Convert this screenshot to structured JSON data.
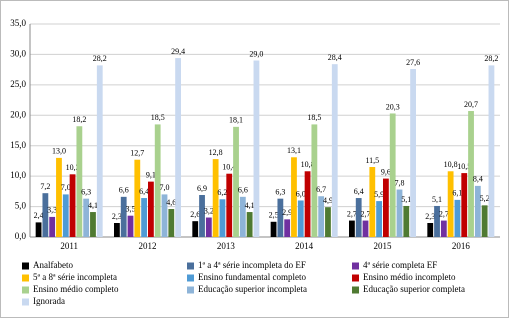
{
  "chart_data": {
    "type": "bar",
    "categories": [
      "2011",
      "2012",
      "2013",
      "2014",
      "2015",
      "2016"
    ],
    "ylim": [
      0,
      35
    ],
    "yticks": [
      {
        "value": 0,
        "label": "0,0"
      },
      {
        "value": 5,
        "label": "5,0"
      },
      {
        "value": 10,
        "label": "10,0"
      },
      {
        "value": 15,
        "label": "15,0"
      },
      {
        "value": 20,
        "label": "20,0"
      },
      {
        "value": 25,
        "label": "25,0"
      },
      {
        "value": 30,
        "label": "30,0"
      },
      {
        "value": 35,
        "label": "35,0"
      }
    ],
    "grid": true,
    "series": [
      {
        "name": "Analfabeto",
        "color": "#000000",
        "values": [
          2.4,
          2.3,
          2.6,
          2.5,
          2.7,
          2.3
        ],
        "value_labels": [
          "2,4",
          "2,3",
          "2,6",
          "2,5",
          "2,7",
          "2,3"
        ]
      },
      {
        "name": "1ª a 4ª série incompleta do EF",
        "color": "#4a6f9c",
        "values": [
          7.2,
          6.6,
          6.9,
          6.3,
          6.4,
          5.1
        ],
        "value_labels": [
          "7,2",
          "6,6",
          "6,9",
          "6,3",
          "6,4",
          "5,1"
        ]
      },
      {
        "name": "4ª série completa EF",
        "color": "#7030a0",
        "values": [
          3.3,
          3.5,
          3.2,
          2.9,
          2.7,
          2.7
        ],
        "value_labels": [
          "3,3",
          "3,5",
          "3,2",
          "2,9",
          "2,7",
          "2,7"
        ]
      },
      {
        "name": "5ª a 8ª série incompleta",
        "color": "#ffc000",
        "values": [
          13.0,
          12.7,
          12.8,
          13.1,
          11.5,
          10.8
        ],
        "value_labels": [
          "13,0",
          "12,7",
          "12,8",
          "13,1",
          "11,5",
          "10,8"
        ]
      },
      {
        "name": "Ensino fundamental completo",
        "color": "#4f9bd5",
        "values": [
          7.0,
          6.4,
          6.2,
          6.0,
          5.9,
          6.1
        ],
        "value_labels": [
          "7,0",
          "6,4",
          "6,2",
          "6,0",
          "5,9",
          "6,1"
        ]
      },
      {
        "name": "Ensino médio incompleto",
        "color": "#c00000",
        "values": [
          10.3,
          9.1,
          10.4,
          10.8,
          9.6,
          10.5
        ],
        "value_labels": [
          "10,3",
          "9,1",
          "10,4",
          "10,8",
          "9,6",
          "10,5"
        ]
      },
      {
        "name": "Ensino médio completo",
        "color": "#a9d18e",
        "values": [
          18.2,
          18.5,
          18.1,
          18.5,
          20.3,
          20.7
        ],
        "value_labels": [
          "18,2",
          "18,5",
          "18,1",
          "18,5",
          "20,3",
          "20,7"
        ]
      },
      {
        "name": "Educação superior incompleta",
        "color": "#8eb4d8",
        "values": [
          6.3,
          7.0,
          6.6,
          6.7,
          7.8,
          8.4
        ],
        "value_labels": [
          "6,3",
          "7,0",
          "6,6",
          "6,7",
          "7,8",
          "8,4"
        ]
      },
      {
        "name": "Educação superior completa",
        "color": "#4f7a32",
        "values": [
          4.1,
          4.6,
          4.1,
          4.9,
          5.1,
          5.2
        ],
        "value_labels": [
          "4,1",
          "4,6",
          "4,1",
          "4,9",
          "5,1",
          "5,2"
        ]
      },
      {
        "name": "Ignorada",
        "color": "#c9d9f0",
        "values": [
          28.2,
          29.4,
          29.0,
          28.4,
          27.6,
          28.2
        ],
        "value_labels": [
          "28,2",
          "29,4",
          "29,0",
          "28,4",
          "27,6",
          "28,2"
        ]
      }
    ]
  }
}
